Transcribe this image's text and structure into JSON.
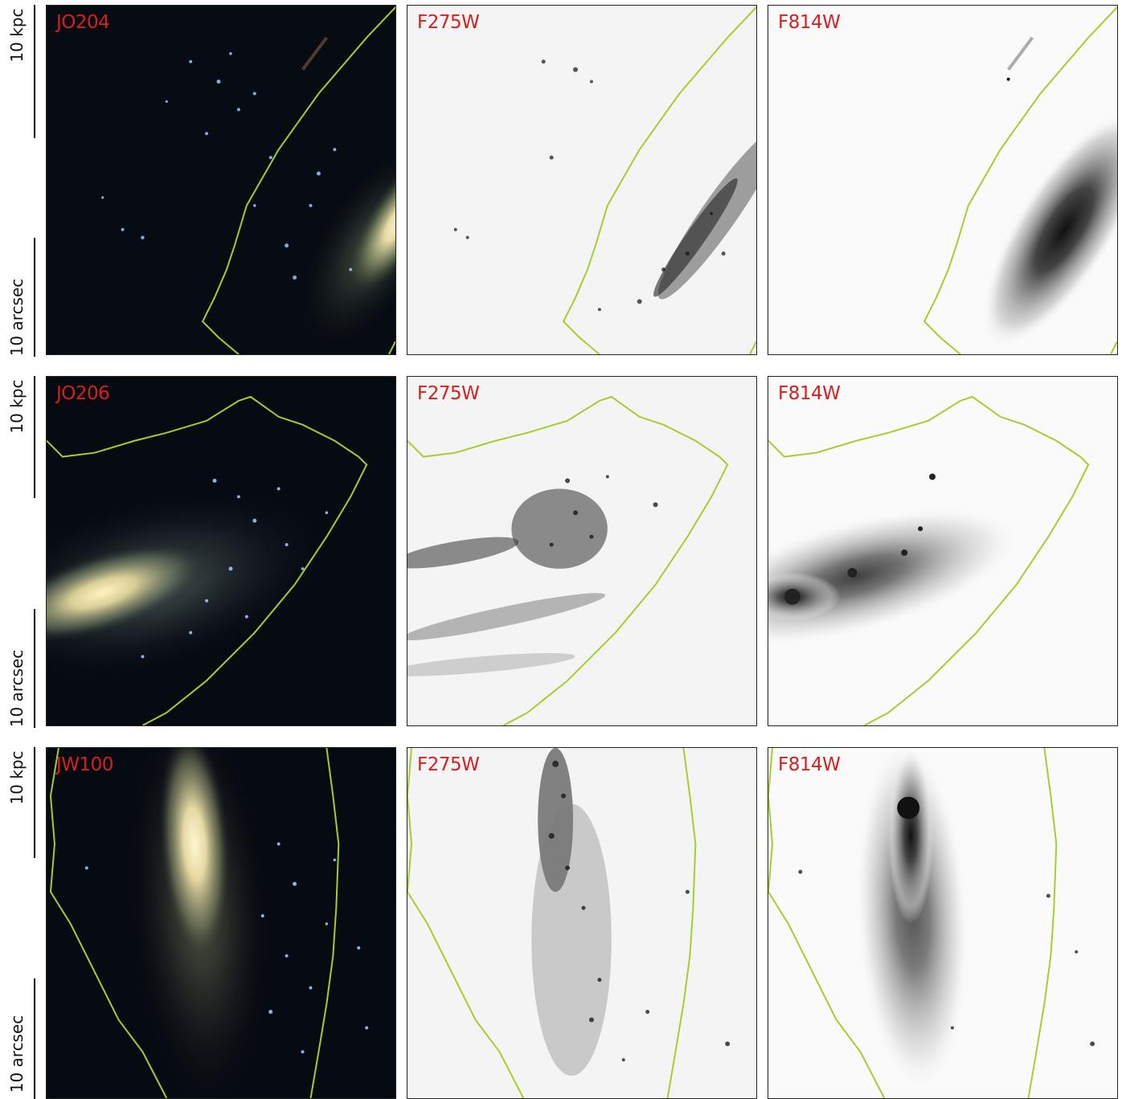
{
  "scale": {
    "kpc_label": "10 kpc",
    "arcsec_label": "10 arcsec"
  },
  "rows": [
    {
      "galaxy": "JO204",
      "uv_filter": "F275W",
      "ir_filter": "F814W"
    },
    {
      "galaxy": "JO206",
      "uv_filter": "F275W",
      "ir_filter": "F814W"
    },
    {
      "galaxy": "JW100",
      "uv_filter": "F275W",
      "ir_filter": "F814W"
    }
  ],
  "colors": {
    "label": "#d62020",
    "contour": "#a8cc2e",
    "frame": "#222222"
  }
}
